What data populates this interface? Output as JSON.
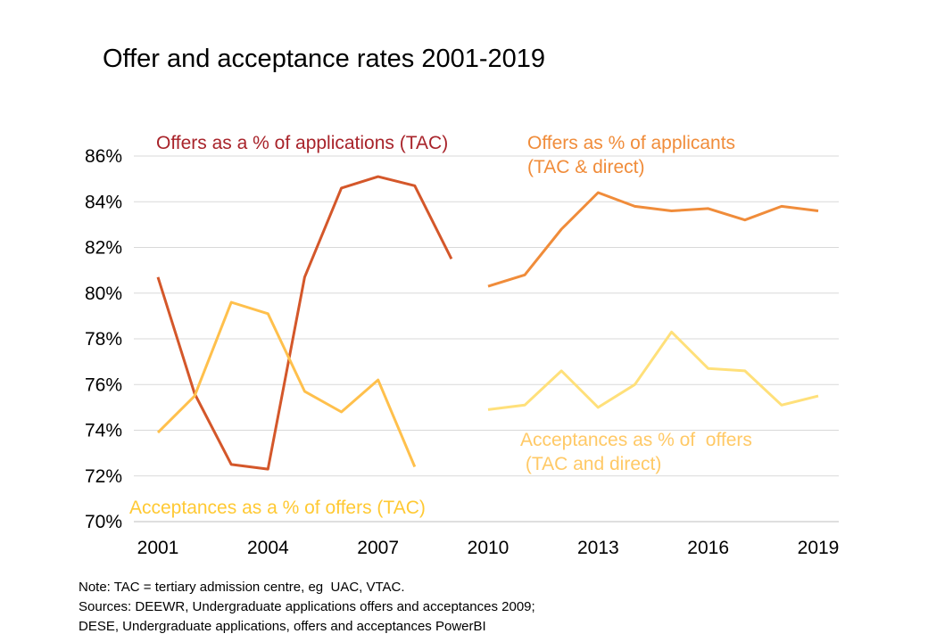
{
  "chart_data": {
    "type": "line",
    "title": "Offer and acceptance rates 2001-2019",
    "x_ticks": [
      "2001",
      "2004",
      "2007",
      "2010",
      "2013",
      "2016",
      "2019"
    ],
    "y_ticks": [
      "70%",
      "72%",
      "74%",
      "76%",
      "78%",
      "80%",
      "82%",
      "84%",
      "86%"
    ],
    "xlim": [
      2001,
      2019
    ],
    "ylim": [
      70,
      86
    ],
    "grid": "horizontal",
    "series": [
      {
        "name": "Offers as a % of applications (TAC)",
        "color": "#D4572A",
        "x": [
          2001,
          2002,
          2003,
          2004,
          2005,
          2006,
          2007,
          2008,
          2009
        ],
        "values": [
          80.7,
          75.6,
          72.5,
          72.3,
          80.7,
          84.6,
          85.1,
          84.7,
          81.5
        ]
      },
      {
        "name": "Acceptances as a % of offers (TAC)",
        "color": "#FFC04C",
        "x": [
          2001,
          2002,
          2003,
          2004,
          2005,
          2006,
          2007,
          2008
        ],
        "values": [
          73.9,
          75.5,
          79.6,
          79.1,
          75.7,
          74.8,
          76.2,
          72.4
        ]
      },
      {
        "name": "Offers as % of applicants (TAC & direct)",
        "color": "#F08C3A",
        "x": [
          2010,
          2011,
          2012,
          2013,
          2014,
          2015,
          2016,
          2017,
          2018,
          2019
        ],
        "values": [
          80.3,
          80.8,
          82.8,
          84.4,
          83.8,
          83.6,
          83.7,
          83.2,
          83.8,
          83.6
        ]
      },
      {
        "name": "Acceptances as % of  offers (TAC and direct)",
        "color": "#FFE07A",
        "x": [
          2010,
          2011,
          2012,
          2013,
          2014,
          2015,
          2016,
          2017,
          2018,
          2019
        ],
        "values": [
          74.9,
          75.1,
          76.6,
          75.0,
          76.0,
          78.3,
          76.7,
          76.6,
          75.1,
          75.5
        ]
      }
    ],
    "annotations": [
      {
        "text": "Offers as a % of applications (TAC)",
        "color": "#A8232A"
      },
      {
        "text": "Offers as % of applicants\n(TAC & direct)",
        "color": "#F08C3A"
      },
      {
        "text": "Acceptances as % of  offers\n (TAC and direct)",
        "color": "#FFC966"
      },
      {
        "text": "Acceptances as a % of offers (TAC)",
        "color": "#FFC933"
      }
    ]
  },
  "notes": [
    "Note: TAC = tertiary admission centre, eg  UAC, VTAC.",
    "Sources: DEEWR, Undergraduate applications offers and acceptances 2009;",
    "DESE, Undergraduate applications, offers and acceptances PowerBI"
  ]
}
